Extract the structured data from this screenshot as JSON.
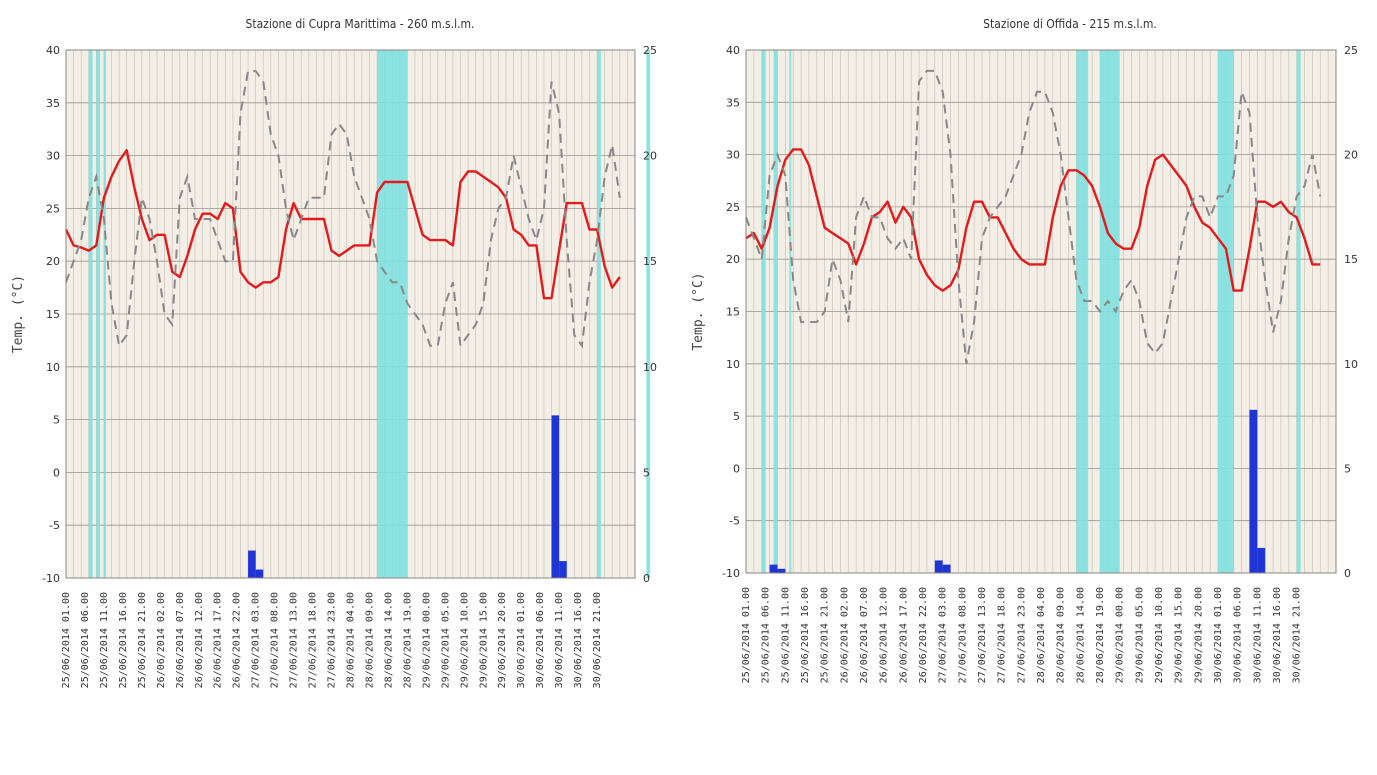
{
  "chart_data": [
    {
      "type": "line",
      "title": "Stazione di Cupra Marittima - 260 m.s.l.m.",
      "ylabel": "Temp. (°C)",
      "ylabel_right": "",
      "ylim": [
        -10,
        40
      ],
      "y2lim": [
        0,
        25
      ],
      "yticks": [
        40,
        35,
        30,
        25,
        20,
        15,
        10,
        5,
        0,
        -5,
        -10
      ],
      "y2ticks": [
        25,
        20,
        15,
        10,
        5,
        0
      ],
      "grid": true,
      "colors": {
        "temperature": "#e31a1c",
        "humidity": "#888888",
        "rain": "#1f35d6",
        "wet": "#80e0e0",
        "plot_bg": "#f4efe6",
        "grid": "#c8c3ba"
      },
      "x_labels": [
        "25/06/2014 01.00",
        "25/06/2014 06.00",
        "25/06/2014 11.00",
        "25/06/2014 16.00",
        "25/06/2014 21.00",
        "26/06/2014 02.00",
        "26/06/2014 07.00",
        "26/06/2014 12.00",
        "26/06/2014 17.00",
        "26/06/2014 22.00",
        "27/06/2014 03.00",
        "27/06/2014 08.00",
        "27/06/2014 13.00",
        "27/06/2014 18.00",
        "27/06/2014 23.00",
        "28/06/2014 04.00",
        "28/06/2014 09.00",
        "28/06/2014 14.00",
        "28/06/2014 19.00",
        "29/06/2014 00.00",
        "29/06/2014 05.00",
        "29/06/2014 10.00",
        "29/06/2014 15.00",
        "29/06/2014 20.00",
        "30/06/2014 01.00",
        "30/06/2014 06.00",
        "30/06/2014 11.00",
        "30/06/2014 16.00",
        "30/06/2014 21.00"
      ],
      "x_hours": [
        0,
        2,
        4,
        6,
        8,
        10,
        12,
        14,
        16,
        18,
        20,
        22,
        24,
        26,
        28,
        30,
        32,
        34,
        36,
        38,
        40,
        42,
        44,
        46,
        48,
        50,
        52,
        54,
        56,
        58,
        60,
        62,
        64,
        66,
        68,
        70,
        72,
        74,
        76,
        78,
        80,
        82,
        84,
        86,
        88,
        90,
        92,
        94,
        96,
        98,
        100,
        102,
        104,
        106,
        108,
        110,
        112,
        114,
        116,
        118,
        120,
        122,
        124,
        126,
        128,
        130,
        132,
        134,
        136,
        138,
        140,
        142,
        144,
        146
      ],
      "series": [
        {
          "name": "",
          "role": "temperature",
          "axis": "left",
          "values": [
            23,
            21.5,
            21.3,
            21,
            21.5,
            26,
            28,
            29.5,
            30.5,
            27,
            24,
            22,
            22.5,
            22.5,
            19,
            18.5,
            20.5,
            23,
            24.5,
            24.5,
            24,
            25.5,
            25,
            19,
            18,
            17.5,
            18,
            18,
            18.5,
            23,
            25.5,
            24,
            24,
            24,
            24,
            21,
            20.5,
            21,
            21.5,
            21.5,
            21.5,
            26.5,
            27.5,
            27.5,
            27.5,
            27.5,
            25,
            22.5,
            22,
            22,
            22,
            21.5,
            27.5,
            28.5,
            28.5,
            28,
            27.5,
            27,
            26,
            23,
            22.5,
            21.5,
            21.5,
            16.5,
            16.5,
            21,
            25.5,
            25.5,
            25.5,
            23,
            23,
            19.5,
            17.5,
            18.5
          ]
        },
        {
          "name": "",
          "role": "humidity",
          "axis": "right",
          "values": [
            14,
            15,
            16,
            18,
            19,
            17,
            13,
            11,
            11.5,
            15,
            18,
            17,
            15,
            12.5,
            12,
            18,
            19,
            17,
            17,
            17,
            16,
            15,
            15,
            22,
            24,
            24,
            23.5,
            21,
            20,
            17.5,
            16,
            17,
            18,
            18,
            18,
            21,
            21.5,
            21,
            19,
            18,
            17,
            15,
            14.5,
            14,
            14,
            13,
            12.5,
            12,
            11,
            11,
            13,
            14,
            11,
            11.5,
            12,
            13,
            16,
            17.5,
            18,
            20,
            18.5,
            17,
            16,
            17.5,
            23.5,
            22,
            16,
            11.5,
            11,
            14,
            16,
            19,
            20.5,
            18
          ]
        },
        {
          "name": "",
          "role": "rain",
          "axis": "right",
          "values": [
            0,
            0,
            0,
            0,
            0,
            0,
            0,
            0,
            0,
            0,
            0,
            0,
            0,
            0,
            0,
            0,
            0,
            0,
            0,
            0,
            0,
            0,
            0,
            0,
            1.3,
            0.4,
            0,
            0,
            0,
            0,
            0,
            0,
            0,
            0,
            0,
            0,
            0,
            0,
            0,
            0,
            0,
            0,
            0,
            0,
            0,
            0,
            0,
            0,
            0,
            0,
            0,
            0,
            0,
            0,
            0,
            0,
            0,
            0,
            0,
            0,
            0,
            0,
            0,
            0,
            7.7,
            0.8,
            0,
            0,
            0,
            0,
            0,
            0,
            0,
            0
          ]
        }
      ],
      "wet_periods": [
        [
          6,
          7
        ],
        [
          8,
          9
        ],
        [
          10,
          10.5
        ],
        [
          82,
          90
        ],
        [
          140,
          141
        ],
        [
          153,
          154
        ]
      ]
    },
    {
      "type": "line",
      "title": "Stazione di Offida - 215 m.s.l.m.",
      "ylabel": "Temp. (°C)",
      "ylabel_right": "",
      "ylim": [
        -10,
        40
      ],
      "y2lim": [
        0,
        25
      ],
      "yticks": [
        40,
        35,
        30,
        25,
        20,
        15,
        10,
        5,
        0,
        -5,
        -10
      ],
      "y2ticks": [
        25,
        20,
        15,
        10,
        5,
        0
      ],
      "grid": true,
      "colors": {
        "temperature": "#e31a1c",
        "humidity": "#888888",
        "rain": "#1f35d6",
        "wet": "#80e0e0",
        "plot_bg": "#f4efe6",
        "grid": "#c8c3ba"
      },
      "x_labels": [
        "25/06/2014 01.00",
        "25/06/2014 06.00",
        "25/06/2014 11.00",
        "25/06/2014 16.00",
        "25/06/2014 21.00",
        "26/06/2014 02.00",
        "26/06/2014 07.00",
        "26/06/2014 12.00",
        "26/06/2014 17.00",
        "26/06/2014 22.00",
        "27/06/2014 03.00",
        "27/06/2014 08.00",
        "27/06/2014 13.00",
        "27/06/2014 18.00",
        "27/06/2014 23.00",
        "28/06/2014 04.00",
        "28/06/2014 09.00",
        "28/06/2014 14.00",
        "28/06/2014 19.00",
        "29/06/2014 00.00",
        "29/06/2014 05.00",
        "29/06/2014 10.00",
        "29/06/2014 15.00",
        "29/06/2014 20.00",
        "30/06/2014 01.00",
        "30/06/2014 06.00",
        "30/06/2014 11.00",
        "30/06/2014 16.00",
        "30/06/2014 21.00"
      ],
      "x_hours": [
        0,
        2,
        4,
        6,
        8,
        10,
        12,
        14,
        16,
        18,
        20,
        22,
        24,
        26,
        28,
        30,
        32,
        34,
        36,
        38,
        40,
        42,
        44,
        46,
        48,
        50,
        52,
        54,
        56,
        58,
        60,
        62,
        64,
        66,
        68,
        70,
        72,
        74,
        76,
        78,
        80,
        82,
        84,
        86,
        88,
        90,
        92,
        94,
        96,
        98,
        100,
        102,
        104,
        106,
        108,
        110,
        112,
        114,
        116,
        118,
        120,
        122,
        124,
        126,
        128,
        130,
        132,
        134,
        136,
        138,
        140,
        142,
        144,
        146
      ],
      "series": [
        {
          "name": "",
          "role": "temperature",
          "axis": "left",
          "values": [
            22,
            22.5,
            21,
            23,
            27,
            29.5,
            30.5,
            30.5,
            29,
            26,
            23,
            22.5,
            22,
            21.5,
            19.5,
            21.5,
            24,
            24.5,
            25.5,
            23.5,
            25,
            24,
            20,
            18.5,
            17.5,
            17,
            17.5,
            19,
            23,
            25.5,
            25.5,
            24,
            24,
            22.5,
            21,
            20,
            19.5,
            19.5,
            19.5,
            24,
            27,
            28.5,
            28.5,
            28,
            27,
            25,
            22.5,
            21.5,
            21,
            21,
            23,
            27,
            29.5,
            30,
            29,
            28,
            27,
            25,
            23.5,
            23,
            22,
            21,
            17,
            17,
            21,
            25.5,
            25.5,
            25,
            25.5,
            24.5,
            24,
            22,
            19.5,
            19.5
          ]
        },
        {
          "name": "",
          "role": "humidity",
          "axis": "right",
          "values": [
            17,
            16,
            15,
            19,
            20,
            19,
            14,
            12,
            12,
            12,
            12.5,
            15,
            14,
            12,
            17,
            18,
            17,
            17,
            16,
            15.5,
            16,
            15,
            23.5,
            24,
            24,
            23,
            20,
            14,
            10,
            12,
            16,
            17,
            17.5,
            18,
            19,
            20,
            22,
            23,
            23,
            22,
            20,
            17,
            14,
            13,
            13,
            12.5,
            13,
            12.5,
            13.5,
            14,
            13,
            11,
            10.5,
            11,
            13,
            15,
            17,
            18,
            18,
            17,
            18,
            18,
            19,
            23,
            22,
            17,
            14,
            11.5,
            13,
            16,
            18,
            18.5,
            20,
            18
          ]
        },
        {
          "name": "",
          "role": "rain",
          "axis": "right",
          "values": [
            0,
            0,
            0,
            0.4,
            0.2,
            0,
            0,
            0,
            0,
            0,
            0,
            0,
            0,
            0,
            0,
            0,
            0,
            0,
            0,
            0,
            0,
            0,
            0,
            0,
            0.6,
            0.4,
            0,
            0,
            0,
            0,
            0,
            0,
            0,
            0,
            0,
            0,
            0,
            0,
            0,
            0,
            0,
            0,
            0,
            0,
            0,
            0,
            0,
            0,
            0,
            0,
            0,
            0,
            0,
            0,
            0,
            0,
            0,
            0,
            0,
            0,
            0,
            0,
            0,
            0,
            7.8,
            1.2,
            0,
            0,
            0,
            0,
            0,
            0,
            0,
            0
          ]
        }
      ],
      "wet_periods": [
        [
          4,
          5
        ],
        [
          7,
          8
        ],
        [
          11,
          11.5
        ],
        [
          84,
          87
        ],
        [
          90,
          95
        ],
        [
          120,
          124
        ],
        [
          140,
          141
        ]
      ]
    }
  ]
}
